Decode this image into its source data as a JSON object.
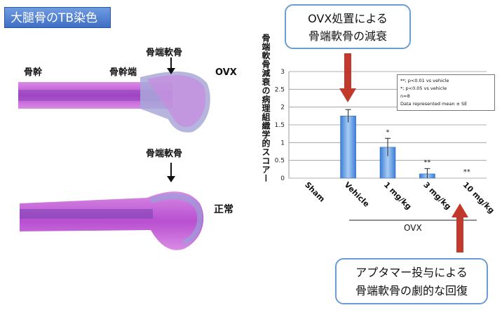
{
  "badge_title": "大腿骨のTB染色",
  "bone_labels": {
    "shaft": "骨幹",
    "metaphysis": "骨幹端",
    "cartilage_top": "骨端軟骨",
    "ovx": "OVX",
    "cartilage_bottom": "骨端軟骨",
    "normal": "正常"
  },
  "callout_top": {
    "line1": "OVX処置による",
    "line2": "骨端軟骨の減衰"
  },
  "callout_bottom": {
    "line1": "アプタマー投与による",
    "line2": "骨端軟骨の劇的な回復"
  },
  "colors": {
    "callout_border": "#6b9bd8",
    "arrow": "#c0392b",
    "bar": "#5b9bd5",
    "stain": "#c85ad8"
  },
  "chart_data": {
    "type": "bar",
    "ylabel": "骨端軟骨減衰の病理組織学的スコアー",
    "xlabel": "OVX",
    "categories": [
      "Sham",
      "Vehicle",
      "1 mg/kg",
      "3 mg/kg",
      "10 mg/kg"
    ],
    "values": [
      0,
      1.75,
      0.87,
      0.12,
      0
    ],
    "errors": [
      0,
      0.18,
      0.25,
      0.15,
      0
    ],
    "significance": [
      "",
      "",
      "*",
      "**",
      "**"
    ],
    "ylim": [
      0,
      3
    ],
    "yticks": [
      "0",
      "0.5",
      "1",
      "1.5",
      "2",
      "2.5",
      "3"
    ],
    "legend": [
      "**; p<0.01 vs vehicle",
      "*; p<0.05 vs vehicle",
      "n=8",
      "Data represented mean ± SE"
    ]
  }
}
